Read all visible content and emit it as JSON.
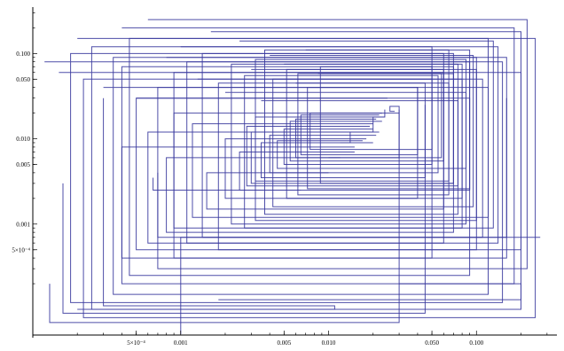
{
  "chart_data": {
    "type": "line",
    "scale": {
      "x": "log",
      "y": "log"
    },
    "xlim": [
      0.0001,
      0.35
    ],
    "ylim": [
      5e-05,
      0.35
    ],
    "x_ticks": [
      {
        "value": 0.0005,
        "label": "5×10⁻⁴"
      },
      {
        "value": 0.001,
        "label": "0.001"
      },
      {
        "value": 0.005,
        "label": "0.005"
      },
      {
        "value": 0.01,
        "label": "0.010"
      },
      {
        "value": 0.05,
        "label": "0.050"
      },
      {
        "value": 0.1,
        "label": "0.100"
      }
    ],
    "y_ticks": [
      {
        "value": 0.0005,
        "label": "5×10⁻⁴"
      },
      {
        "value": 0.001,
        "label": "0.001"
      },
      {
        "value": 0.005,
        "label": "0.005"
      },
      {
        "value": 0.01,
        "label": "0.010"
      },
      {
        "value": 0.05,
        "label": "0.050"
      },
      {
        "value": 0.1,
        "label": "0.100"
      }
    ],
    "line_color": "#3b3b9e",
    "grid": false,
    "series": [
      {
        "points": [
          [
            0.00012,
            0.08
          ],
          [
            0.15,
            0.08
          ],
          [
            0.15,
            0.00012
          ],
          [
            0.00018,
            0.00012
          ],
          [
            0.00018,
            0.1
          ],
          [
            0.06,
            0.1
          ],
          [
            0.06,
            0.0006
          ],
          [
            0.0006,
            0.0006
          ],
          [
            0.0006,
            0.012
          ],
          [
            0.02,
            0.012
          ]
        ]
      },
      {
        "points": [
          [
            0.00015,
            0.06
          ],
          [
            0.2,
            0.06
          ],
          [
            0.2,
            0.0001
          ],
          [
            0.00025,
            0.0001
          ],
          [
            0.00025,
            0.12
          ],
          [
            0.05,
            0.12
          ],
          [
            0.05,
            0.0004
          ],
          [
            0.0004,
            0.0004
          ],
          [
            0.0004,
            0.008
          ],
          [
            0.015,
            0.008
          ]
        ]
      },
      {
        "points": [
          [
            0.0002,
            0.15
          ],
          [
            0.25,
            0.15
          ],
          [
            0.25,
            8e-05
          ],
          [
            0.00022,
            8e-05
          ],
          [
            0.00022,
            0.05
          ],
          [
            0.08,
            0.05
          ],
          [
            0.08,
            0.0009
          ],
          [
            0.0009,
            0.0009
          ],
          [
            0.0009,
            0.02
          ],
          [
            0.03,
            0.02
          ]
        ]
      },
      {
        "points": [
          [
            0.0003,
            0.04
          ],
          [
            0.12,
            0.04
          ],
          [
            0.12,
            0.00015
          ],
          [
            0.00035,
            0.00015
          ],
          [
            0.00035,
            0.09
          ],
          [
            0.1,
            0.09
          ],
          [
            0.1,
            0.0005
          ],
          [
            0.0005,
            0.0005
          ],
          [
            0.0005,
            0.03
          ],
          [
            0.025,
            0.03
          ]
        ]
      },
      {
        "points": [
          [
            0.0004,
            0.2
          ],
          [
            0.18,
            0.2
          ],
          [
            0.18,
            0.0002
          ],
          [
            0.0004,
            0.0002
          ],
          [
            0.0004,
            0.07
          ],
          [
            0.07,
            0.07
          ],
          [
            0.07,
            0.0008
          ],
          [
            0.0008,
            0.0008
          ],
          [
            0.0008,
            0.006
          ],
          [
            0.012,
            0.006
          ]
        ]
      },
      {
        "points": [
          [
            0.0005,
            0.03
          ],
          [
            0.09,
            0.03
          ],
          [
            0.09,
            0.00025
          ],
          [
            0.00045,
            0.00025
          ],
          [
            0.00045,
            0.15
          ],
          [
            0.12,
            0.15
          ],
          [
            0.12,
            0.0012
          ],
          [
            0.0012,
            0.0012
          ],
          [
            0.0012,
            0.015
          ],
          [
            0.02,
            0.015
          ]
        ]
      },
      {
        "points": [
          [
            0.0006,
            0.25
          ],
          [
            0.22,
            0.25
          ],
          [
            0.22,
            0.0003
          ],
          [
            0.0007,
            0.0003
          ],
          [
            0.0007,
            0.04
          ],
          [
            0.04,
            0.04
          ],
          [
            0.04,
            0.002
          ],
          [
            0.002,
            0.002
          ],
          [
            0.002,
            0.01
          ],
          [
            0.018,
            0.01
          ]
        ]
      },
      {
        "points": [
          [
            0.0008,
            0.09
          ],
          [
            0.16,
            0.09
          ],
          [
            0.16,
            0.0004
          ],
          [
            0.0009,
            0.0004
          ],
          [
            0.0009,
            0.06
          ],
          [
            0.06,
            0.06
          ],
          [
            0.06,
            0.0015
          ],
          [
            0.0015,
            0.0015
          ],
          [
            0.0015,
            0.004
          ],
          [
            0.01,
            0.004
          ]
        ]
      },
      {
        "points": [
          [
            0.001,
            0.12
          ],
          [
            0.14,
            0.12
          ],
          [
            0.14,
            0.0006
          ],
          [
            0.0011,
            0.0006
          ],
          [
            0.0011,
            0.08
          ],
          [
            0.09,
            0.08
          ],
          [
            0.09,
            0.0025
          ],
          [
            0.0025,
            0.0025
          ],
          [
            0.0025,
            0.007
          ],
          [
            0.015,
            0.007
          ]
        ]
      },
      {
        "points": [
          [
            0.0013,
            0.05
          ],
          [
            0.11,
            0.05
          ],
          [
            0.11,
            0.0007
          ],
          [
            0.0014,
            0.0007
          ],
          [
            0.0014,
            0.1
          ],
          [
            0.07,
            0.1
          ],
          [
            0.07,
            0.003
          ],
          [
            0.003,
            0.003
          ],
          [
            0.003,
            0.012
          ],
          [
            0.022,
            0.012
          ]
        ]
      },
      {
        "points": [
          [
            0.0016,
            0.18
          ],
          [
            0.2,
            0.18
          ],
          [
            0.2,
            0.0005
          ],
          [
            0.0018,
            0.0005
          ],
          [
            0.0018,
            0.045
          ],
          [
            0.045,
            0.045
          ],
          [
            0.045,
            0.0035
          ],
          [
            0.0035,
            0.0035
          ],
          [
            0.0035,
            0.009
          ],
          [
            0.02,
            0.009
          ]
        ]
      },
      {
        "points": [
          [
            0.002,
            0.035
          ],
          [
            0.085,
            0.035
          ],
          [
            0.085,
            0.001
          ],
          [
            0.0022,
            0.001
          ],
          [
            0.0022,
            0.075
          ],
          [
            0.075,
            0.075
          ],
          [
            0.075,
            0.0028
          ],
          [
            0.0028,
            0.0028
          ],
          [
            0.0028,
            0.014
          ],
          [
            0.019,
            0.014
          ]
        ]
      },
      {
        "points": [
          [
            0.0025,
            0.14
          ],
          [
            0.13,
            0.14
          ],
          [
            0.13,
            0.0009
          ],
          [
            0.0027,
            0.0009
          ],
          [
            0.0027,
            0.055
          ],
          [
            0.055,
            0.055
          ],
          [
            0.055,
            0.004
          ],
          [
            0.004,
            0.004
          ],
          [
            0.004,
            0.011
          ],
          [
            0.021,
            0.011
          ]
        ]
      },
      {
        "points": [
          [
            0.003,
            0.065
          ],
          [
            0.1,
            0.065
          ],
          [
            0.1,
            0.0011
          ],
          [
            0.0032,
            0.0011
          ],
          [
            0.0032,
            0.085
          ],
          [
            0.085,
            0.085
          ],
          [
            0.085,
            0.0045
          ],
          [
            0.0045,
            0.0045
          ],
          [
            0.0045,
            0.0095
          ],
          [
            0.017,
            0.0095
          ]
        ]
      },
      {
        "points": [
          [
            0.0035,
            0.028
          ],
          [
            0.075,
            0.028
          ],
          [
            0.075,
            0.0013
          ],
          [
            0.0037,
            0.0013
          ],
          [
            0.0037,
            0.11
          ],
          [
            0.065,
            0.11
          ],
          [
            0.065,
            0.0032
          ],
          [
            0.0032,
            0.0032
          ],
          [
            0.0032,
            0.018
          ],
          [
            0.024,
            0.018
          ]
        ]
      },
      {
        "points": [
          [
            0.004,
            0.095
          ],
          [
            0.095,
            0.095
          ],
          [
            0.095,
            0.0016
          ],
          [
            0.0042,
            0.0016
          ],
          [
            0.0042,
            0.05
          ],
          [
            0.05,
            0.05
          ],
          [
            0.05,
            0.005
          ],
          [
            0.005,
            0.005
          ],
          [
            0.005,
            0.013
          ],
          [
            0.02,
            0.013
          ]
        ]
      },
      {
        "points": [
          [
            0.005,
            0.075
          ],
          [
            0.08,
            0.075
          ],
          [
            0.08,
            0.002
          ],
          [
            0.0052,
            0.002
          ],
          [
            0.0052,
            0.065
          ],
          [
            0.06,
            0.065
          ],
          [
            0.06,
            0.0055
          ],
          [
            0.0055,
            0.0055
          ],
          [
            0.0055,
            0.016
          ],
          [
            0.023,
            0.016
          ]
        ]
      },
      {
        "points": [
          [
            0.006,
            0.045
          ],
          [
            0.065,
            0.045
          ],
          [
            0.065,
            0.0022
          ],
          [
            0.0062,
            0.0022
          ],
          [
            0.0062,
            0.058
          ],
          [
            0.058,
            0.058
          ],
          [
            0.058,
            0.006
          ],
          [
            0.006,
            0.006
          ],
          [
            0.006,
            0.017
          ],
          [
            0.021,
            0.017
          ]
        ]
      },
      {
        "points": [
          [
            0.007,
            0.11
          ],
          [
            0.09,
            0.11
          ],
          [
            0.09,
            0.0026
          ],
          [
            0.0072,
            0.0026
          ],
          [
            0.0072,
            0.04
          ],
          [
            0.04,
            0.04
          ],
          [
            0.04,
            0.0065
          ],
          [
            0.0065,
            0.0065
          ],
          [
            0.0065,
            0.019
          ],
          [
            0.022,
            0.019
          ]
        ]
      },
      {
        "points": [
          [
            0.0085,
            0.058
          ],
          [
            0.07,
            0.058
          ],
          [
            0.07,
            0.003
          ],
          [
            0.0088,
            0.003
          ],
          [
            0.0088,
            0.07
          ],
          [
            0.05,
            0.07
          ],
          [
            0.05,
            0.0075
          ],
          [
            0.0075,
            0.0075
          ],
          [
            0.0075,
            0.02
          ],
          [
            0.023,
            0.02
          ]
        ]
      },
      {
        "points": [
          [
            0.00013,
            0.0002
          ],
          [
            0.00013,
            7e-05
          ],
          [
            0.03,
            7e-05
          ],
          [
            0.03,
            0.022
          ]
        ]
      },
      {
        "points": [
          [
            0.0007,
            0.004
          ],
          [
            0.0007,
            0.0007
          ],
          [
            0.16,
            0.0007
          ],
          [
            0.16,
            0.03
          ]
        ]
      },
      {
        "points": [
          [
            0.00016,
            0.003
          ],
          [
            0.00016,
            9e-05
          ],
          [
            0.045,
            9e-05
          ],
          [
            0.045,
            0.025
          ]
        ]
      },
      {
        "points": [
          [
            0.001,
            4e-05
          ],
          [
            0.001,
            0.0007
          ],
          [
            0.27,
            0.0007
          ]
        ]
      },
      {
        "points": [
          [
            0.0003,
            0.03
          ],
          [
            0.0003,
            0.00011
          ],
          [
            0.011,
            0.00011
          ],
          [
            0.011,
            0.0001
          ],
          [
            0.0002,
            0.0001
          ]
        ]
      },
      {
        "points": [
          [
            0.0018,
            0.00013
          ],
          [
            0.2,
            0.00013
          ],
          [
            0.2,
            0.0002
          ],
          [
            0.03,
            0.0002
          ]
        ]
      },
      {
        "points": [
          [
            0.00065,
            0.0035
          ],
          [
            0.00065,
            0.0025
          ],
          [
            0.0065,
            0.0025
          ]
        ]
      },
      {
        "points": [
          [
            0.01,
            0.006
          ],
          [
            0.03,
            0.006
          ],
          [
            0.03,
            0.024
          ],
          [
            0.026,
            0.024
          ],
          [
            0.026,
            0.021
          ],
          [
            0.028,
            0.021
          ]
        ]
      },
      {
        "points": [
          [
            0.012,
            0.009
          ],
          [
            0.014,
            0.009
          ],
          [
            0.014,
            0.012
          ],
          [
            0.02,
            0.012
          ],
          [
            0.02,
            0.018
          ],
          [
            0.024,
            0.018
          ],
          [
            0.024,
            0.022
          ]
        ]
      }
    ]
  }
}
